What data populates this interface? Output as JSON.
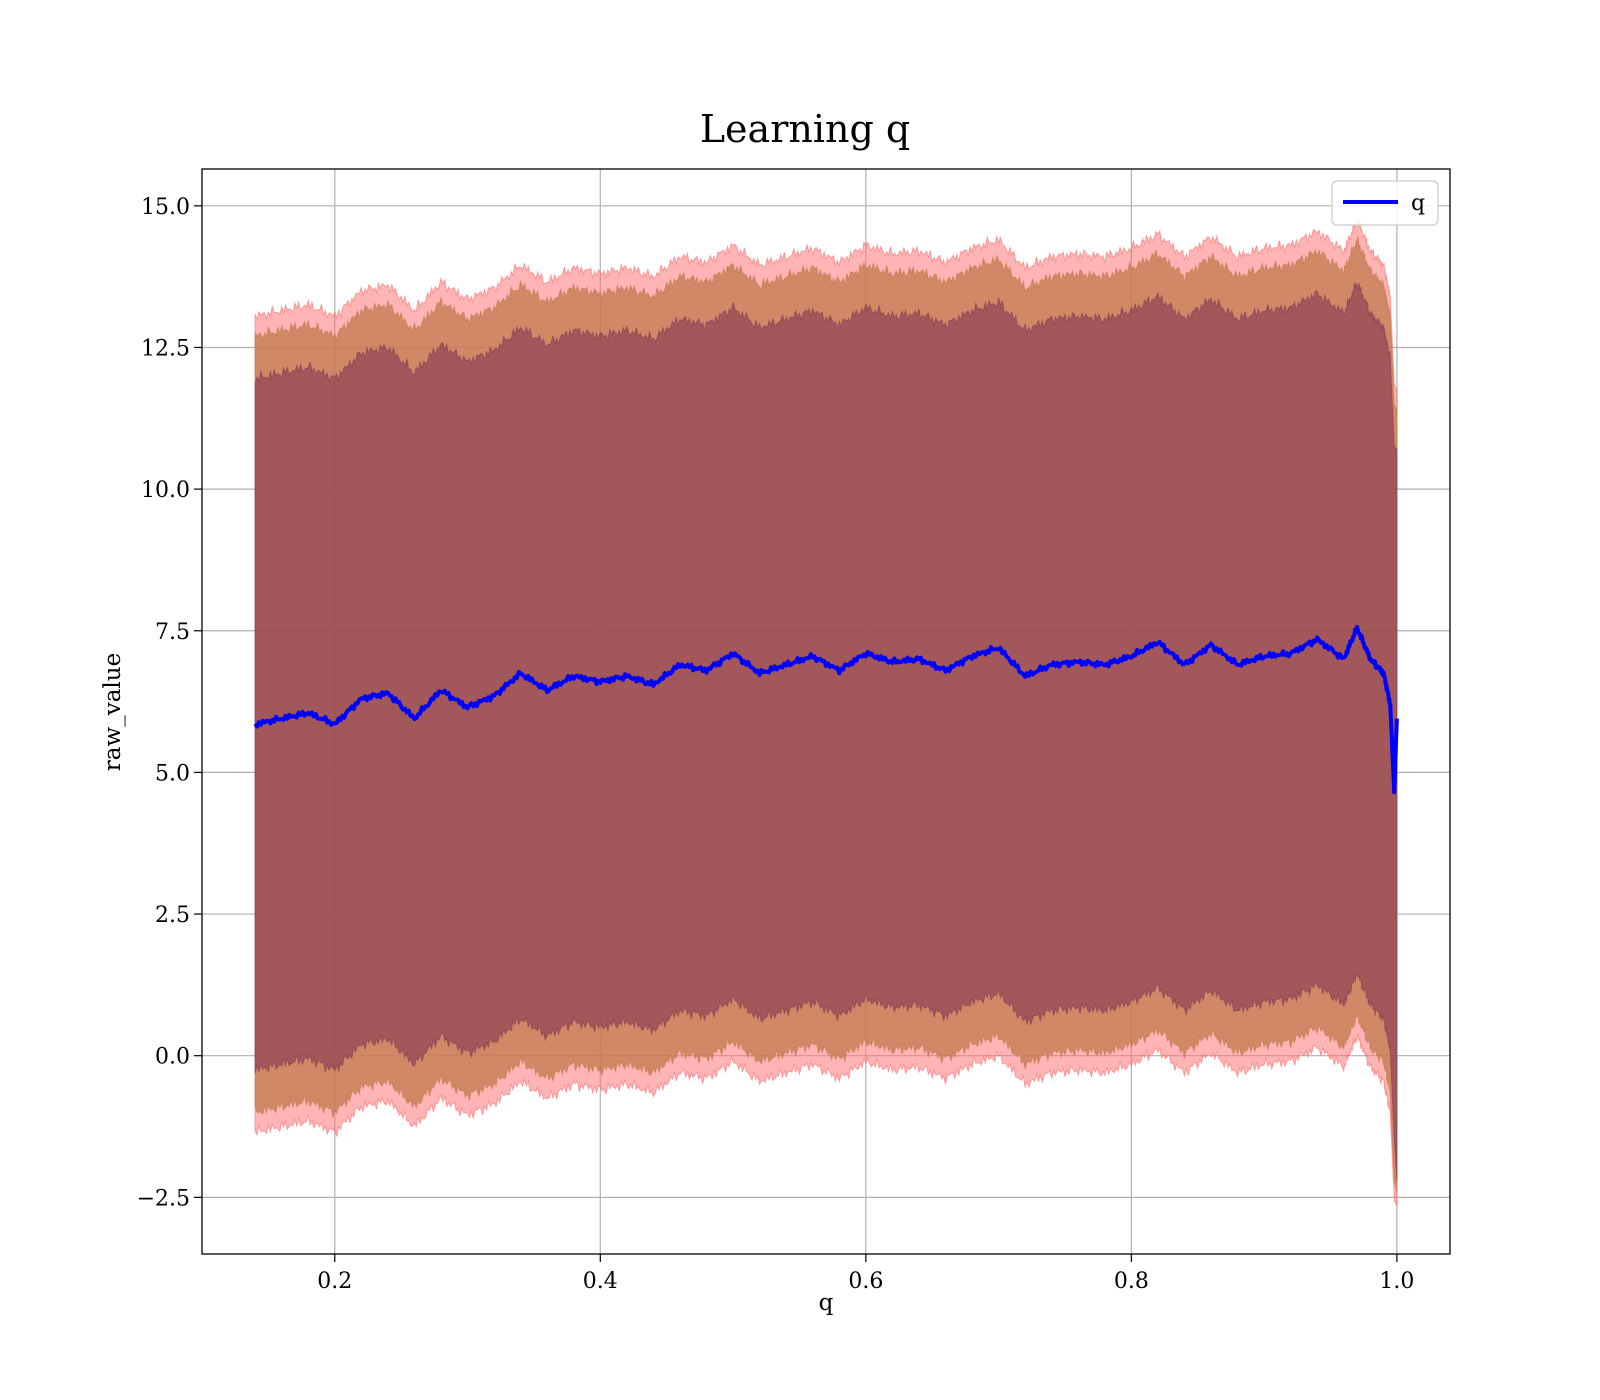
{
  "chart_data": {
    "type": "line",
    "title": "Learning q",
    "xlabel": "q",
    "ylabel": "raw_value",
    "xlim": [
      0.1,
      1.04
    ],
    "ylim": [
      -3.5,
      15.65
    ],
    "xticks": [
      0.2,
      0.4,
      0.6,
      0.8,
      1.0
    ],
    "xtick_labels": [
      "0.2",
      "0.4",
      "0.6",
      "0.8",
      "1.0"
    ],
    "yticks": [
      -2.5,
      0.0,
      2.5,
      5.0,
      7.5,
      10.0,
      12.5,
      15.0
    ],
    "ytick_labels": [
      "−2.5",
      "0.0",
      "2.5",
      "5.0",
      "7.5",
      "10.0",
      "12.5",
      "15.0"
    ],
    "grid": true,
    "legend": {
      "position": "top-right",
      "entries": [
        {
          "label": "q",
          "color": "#0000ff"
        }
      ]
    },
    "colors": {
      "line": "#0000ff",
      "band_outer": "#ff6b6b",
      "band_middle": "#c07a4e",
      "band_inner": "#7b3150"
    },
    "series": [
      {
        "name": "q",
        "x": [
          0.14,
          0.16,
          0.18,
          0.2,
          0.22,
          0.24,
          0.26,
          0.28,
          0.3,
          0.32,
          0.34,
          0.36,
          0.38,
          0.4,
          0.42,
          0.44,
          0.46,
          0.48,
          0.5,
          0.52,
          0.54,
          0.56,
          0.58,
          0.6,
          0.62,
          0.64,
          0.66,
          0.68,
          0.7,
          0.72,
          0.74,
          0.76,
          0.78,
          0.8,
          0.82,
          0.84,
          0.86,
          0.88,
          0.9,
          0.92,
          0.94,
          0.96,
          0.97,
          0.98,
          0.99,
          0.995,
          0.998,
          1.0
        ],
        "y": [
          5.85,
          5.95,
          6.05,
          5.85,
          6.3,
          6.4,
          5.95,
          6.45,
          6.15,
          6.35,
          6.75,
          6.45,
          6.7,
          6.6,
          6.7,
          6.55,
          6.9,
          6.8,
          7.1,
          6.75,
          6.9,
          7.05,
          6.8,
          7.1,
          6.95,
          7.0,
          6.8,
          7.05,
          7.2,
          6.7,
          6.9,
          6.95,
          6.9,
          7.05,
          7.3,
          6.9,
          7.25,
          6.9,
          7.05,
          7.1,
          7.35,
          7.0,
          7.55,
          7.0,
          6.75,
          6.2,
          4.65,
          5.95
        ],
        "band_inner": {
          "upper": [
            11.95,
            12.05,
            12.15,
            11.95,
            12.4,
            12.5,
            12.05,
            12.55,
            12.25,
            12.45,
            12.85,
            12.55,
            12.8,
            12.7,
            12.8,
            12.65,
            13.0,
            12.9,
            13.2,
            12.85,
            13.0,
            13.15,
            12.9,
            13.2,
            13.05,
            13.1,
            12.9,
            13.15,
            13.3,
            12.8,
            13.0,
            13.05,
            13.0,
            13.15,
            13.4,
            13.0,
            13.35,
            13.0,
            13.15,
            13.2,
            13.45,
            13.1,
            13.65,
            13.1,
            12.85,
            12.3,
            10.75,
            10.7
          ],
          "lower": [
            -0.25,
            -0.15,
            -0.05,
            -0.25,
            0.2,
            0.3,
            -0.15,
            0.35,
            0.05,
            0.25,
            0.65,
            0.35,
            0.6,
            0.5,
            0.6,
            0.45,
            0.8,
            0.7,
            1.0,
            0.65,
            0.8,
            0.95,
            0.7,
            1.0,
            0.85,
            0.9,
            0.7,
            0.95,
            1.1,
            0.6,
            0.8,
            0.85,
            0.8,
            0.95,
            1.2,
            0.8,
            1.15,
            0.8,
            0.95,
            1.0,
            1.25,
            0.9,
            1.45,
            0.9,
            0.65,
            0.1,
            -1.45,
            -2.2
          ]
        },
        "band_middle": {
          "upper": [
            12.7,
            12.8,
            12.9,
            12.7,
            13.15,
            13.25,
            12.8,
            13.3,
            13.0,
            13.2,
            13.6,
            13.3,
            13.55,
            13.45,
            13.55,
            13.4,
            13.75,
            13.65,
            13.95,
            13.6,
            13.75,
            13.9,
            13.65,
            13.95,
            13.8,
            13.85,
            13.65,
            13.9,
            14.05,
            13.55,
            13.75,
            13.8,
            13.75,
            13.9,
            14.15,
            13.75,
            14.1,
            13.75,
            13.9,
            13.95,
            14.2,
            13.85,
            14.4,
            13.85,
            13.6,
            13.05,
            11.5,
            11.4
          ],
          "lower": [
            -1.0,
            -0.9,
            -0.8,
            -1.0,
            -0.55,
            -0.45,
            -0.9,
            -0.4,
            -0.7,
            -0.5,
            -0.1,
            -0.4,
            -0.15,
            -0.25,
            -0.15,
            -0.3,
            0.05,
            -0.05,
            0.25,
            -0.1,
            0.05,
            0.2,
            -0.05,
            0.25,
            0.1,
            0.15,
            -0.05,
            0.2,
            0.35,
            -0.15,
            0.05,
            0.1,
            0.05,
            0.2,
            0.45,
            0.05,
            0.4,
            0.05,
            0.2,
            0.25,
            0.5,
            0.15,
            0.7,
            0.15,
            -0.1,
            -0.65,
            -2.2,
            -2.4
          ]
        },
        "band_outer": {
          "upper": [
            13.05,
            13.15,
            13.25,
            13.05,
            13.5,
            13.6,
            13.15,
            13.65,
            13.35,
            13.55,
            13.95,
            13.65,
            13.9,
            13.8,
            13.9,
            13.75,
            14.1,
            14.0,
            14.3,
            13.95,
            14.1,
            14.25,
            14.0,
            14.3,
            14.15,
            14.2,
            14.0,
            14.25,
            14.4,
            13.9,
            14.1,
            14.15,
            14.1,
            14.25,
            14.5,
            14.1,
            14.45,
            14.1,
            14.25,
            14.3,
            14.55,
            14.2,
            14.75,
            14.2,
            13.95,
            13.4,
            11.85,
            11.75
          ],
          "lower": [
            -1.35,
            -1.25,
            -1.15,
            -1.35,
            -0.9,
            -0.8,
            -1.25,
            -0.75,
            -1.05,
            -0.85,
            -0.45,
            -0.75,
            -0.5,
            -0.6,
            -0.5,
            -0.65,
            -0.3,
            -0.4,
            -0.1,
            -0.45,
            -0.3,
            -0.15,
            -0.4,
            -0.1,
            -0.25,
            -0.2,
            -0.4,
            -0.15,
            0.0,
            -0.5,
            -0.3,
            -0.25,
            -0.3,
            -0.15,
            0.1,
            -0.3,
            0.05,
            -0.3,
            -0.15,
            -0.1,
            0.15,
            -0.2,
            0.35,
            -0.2,
            -0.45,
            -1.0,
            -2.55,
            -2.65
          ]
        }
      }
    ]
  }
}
